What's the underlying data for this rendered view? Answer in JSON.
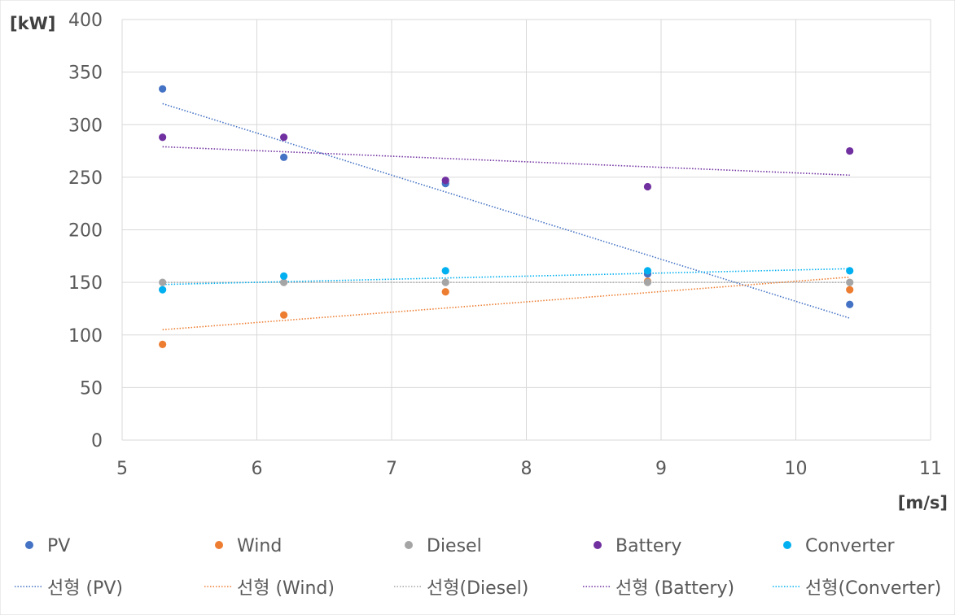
{
  "chart_data": {
    "type": "scatter",
    "x_unit_label": "[m/s]",
    "y_unit_label": "[kW]",
    "xlim": [
      5,
      11
    ],
    "ylim": [
      0,
      400
    ],
    "x_ticks": [
      5,
      6,
      7,
      8,
      9,
      10,
      11
    ],
    "y_ticks": [
      0,
      50,
      100,
      150,
      200,
      250,
      300,
      350,
      400
    ],
    "grid": true,
    "legend_position": "bottom",
    "series": [
      {
        "name": "PV",
        "color": "#4472C4",
        "x": [
          5.3,
          6.2,
          7.4,
          8.9,
          10.4
        ],
        "y": [
          334,
          269,
          244,
          158,
          129
        ],
        "trendline": {
          "label": "선형 (PV)",
          "y_start": 320,
          "y_end": 116
        }
      },
      {
        "name": "Wind",
        "color": "#ED7D31",
        "x": [
          5.3,
          6.2,
          7.4,
          8.9,
          10.4
        ],
        "y": [
          91,
          119,
          141,
          151,
          143
        ],
        "trendline": {
          "label": "선형 (Wind)",
          "y_start": 105,
          "y_end": 155
        }
      },
      {
        "name": "Diesel",
        "color": "#A5A5A5",
        "x": [
          5.3,
          6.2,
          7.4,
          8.9,
          10.4
        ],
        "y": [
          150,
          150,
          150,
          150,
          150
        ],
        "trendline": {
          "label": "선형(Diesel)",
          "y_start": 150,
          "y_end": 150
        }
      },
      {
        "name": "Battery",
        "color": "#7030A0",
        "x": [
          5.3,
          6.2,
          7.4,
          8.9,
          10.4
        ],
        "y": [
          288,
          288,
          247,
          241,
          275
        ],
        "trendline": {
          "label": "선형 (Battery)",
          "y_start": 279,
          "y_end": 252
        }
      },
      {
        "name": "Converter",
        "color": "#00B0F0",
        "x": [
          5.3,
          6.2,
          7.4,
          8.9,
          10.4
        ],
        "y": [
          143,
          156,
          161,
          161,
          161
        ],
        "trendline": {
          "label": "선형(Converter)",
          "y_start": 148,
          "y_end": 163
        }
      }
    ]
  }
}
